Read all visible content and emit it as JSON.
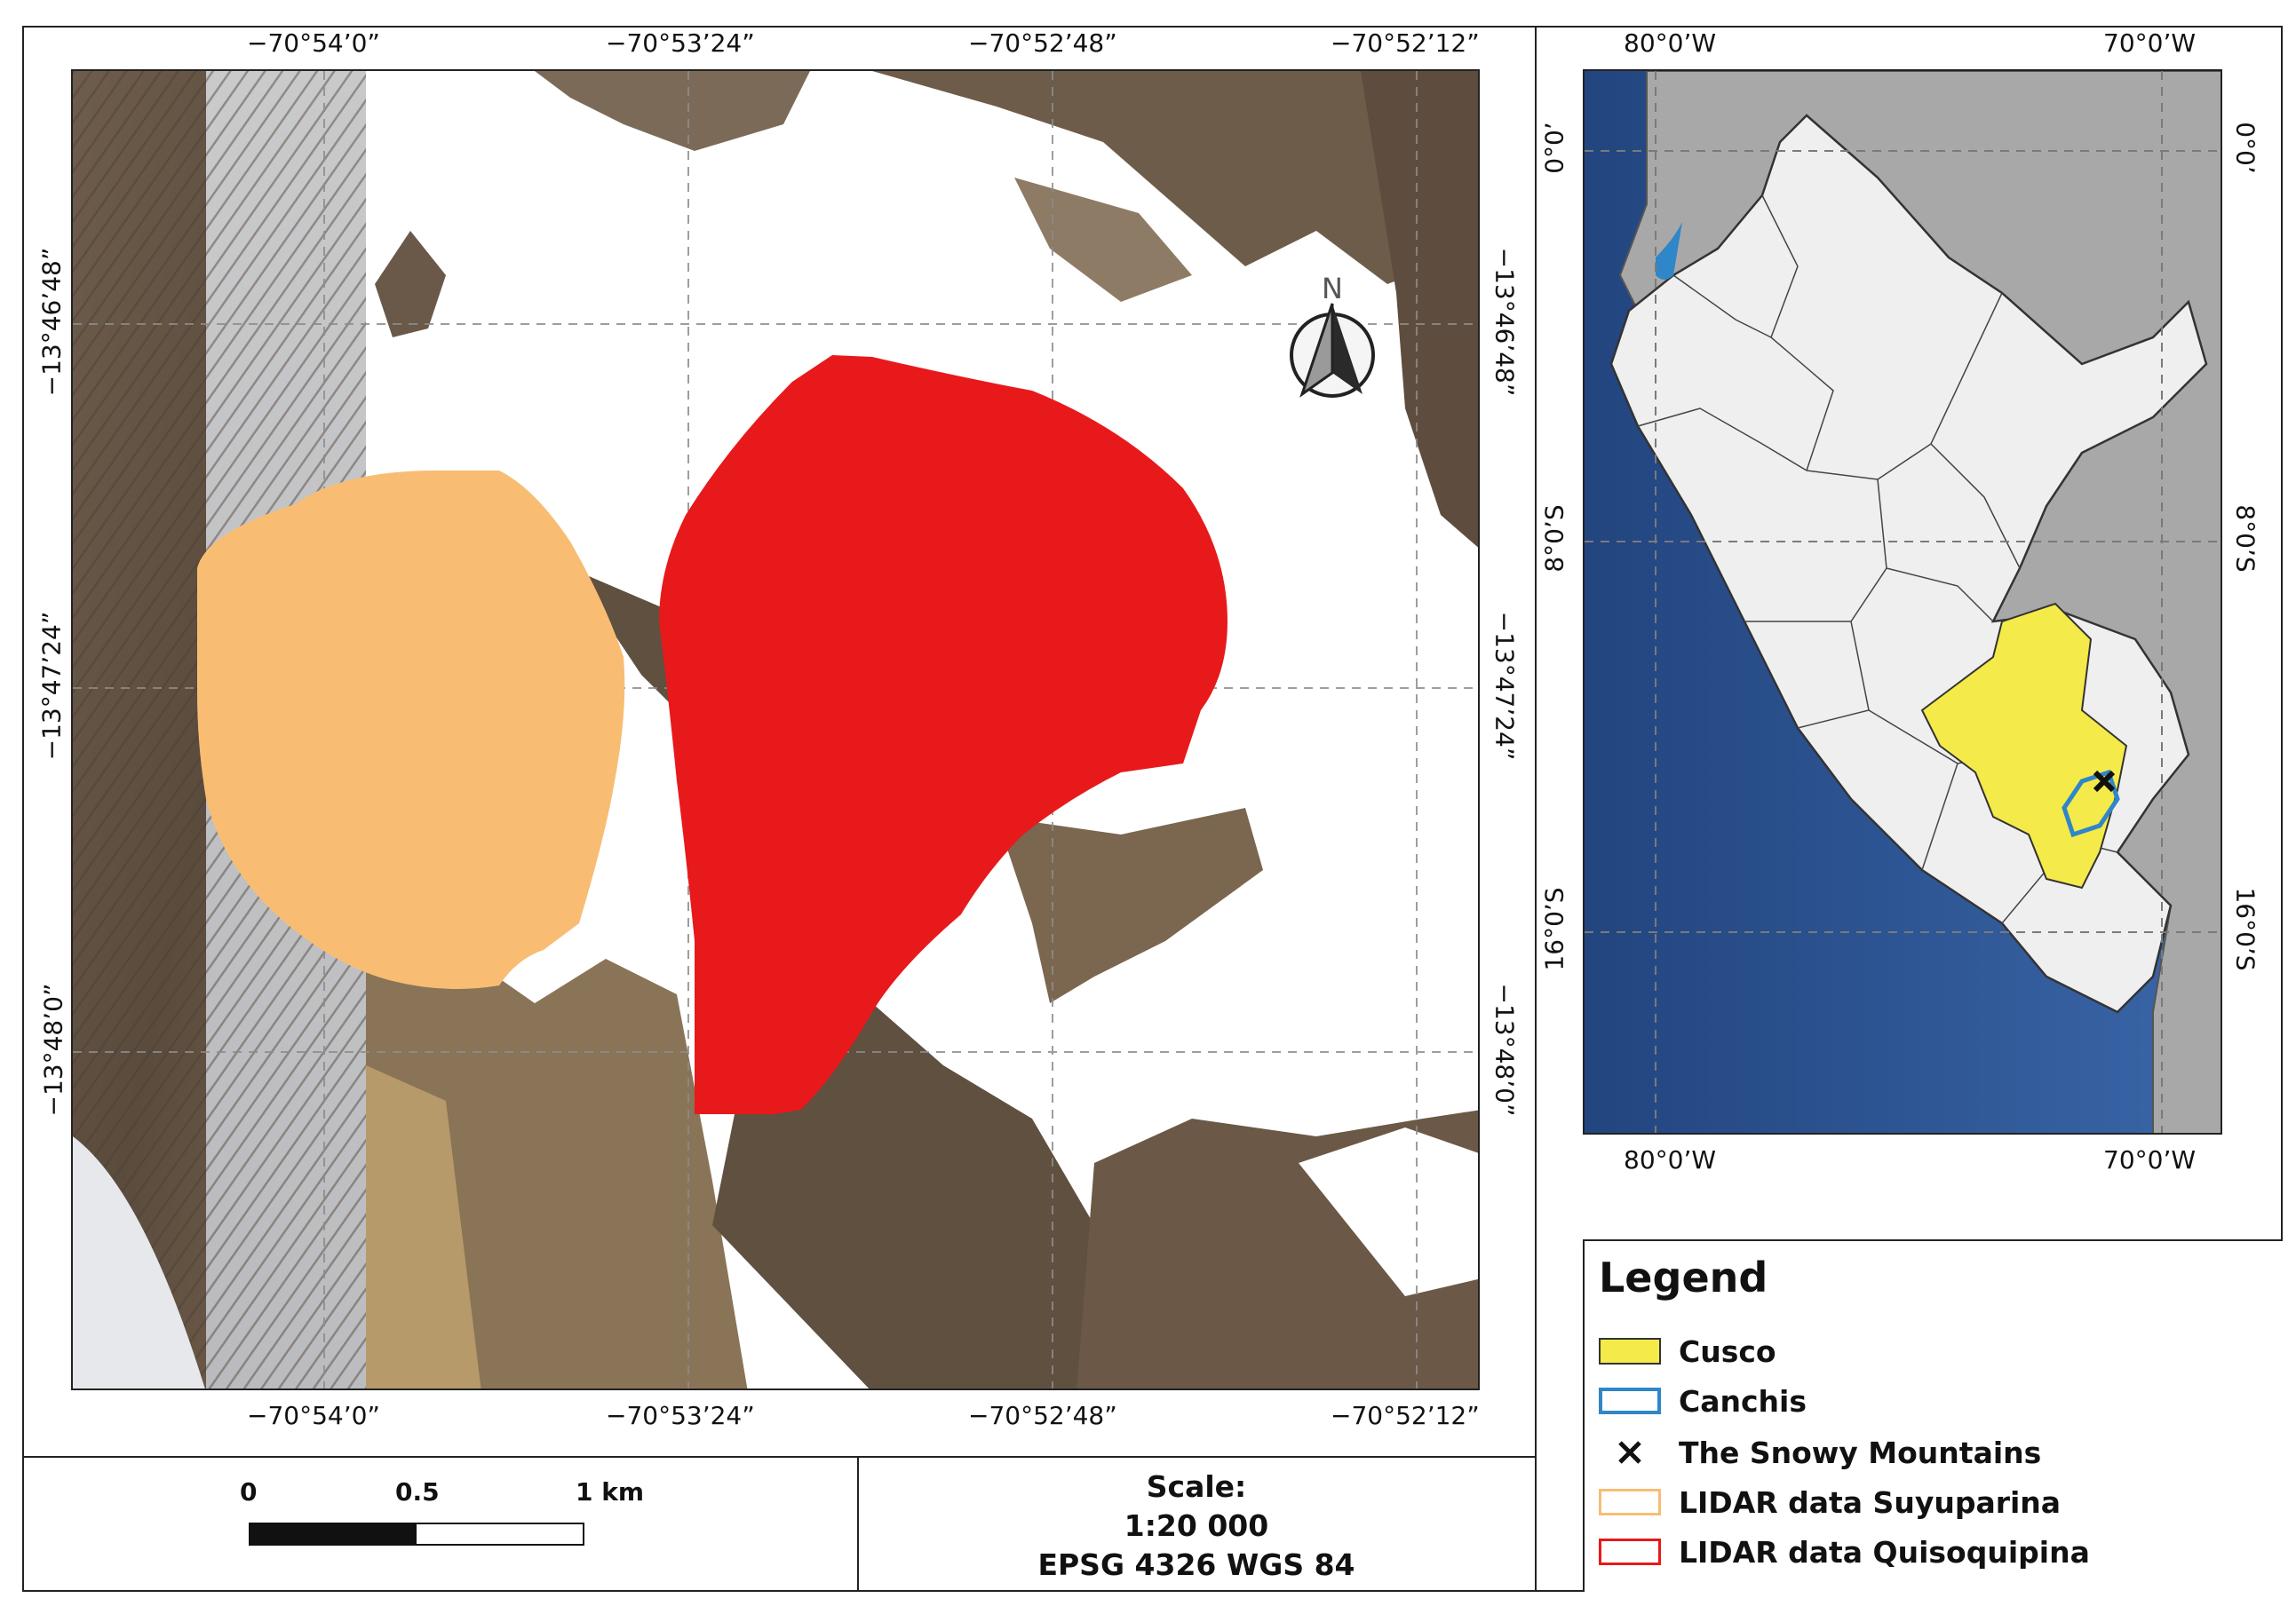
{
  "main_map": {
    "top_lon_labels": [
      "−70°54’0”",
      "−70°53’24”",
      "−70°52’48”",
      "−70°52’12”"
    ],
    "bottom_lon_labels": [
      "−70°54’0”",
      "−70°53’24”",
      "−70°52’48”",
      "−70°52’12”"
    ],
    "left_lat_labels": [
      "−13°46’48”",
      "−13°47’24”",
      "−13°48’0”"
    ],
    "right_lat_labels": [
      "−13°46’48”",
      "−13°47’24”",
      "−13°48’0”"
    ],
    "north_arrow_letter": "N",
    "colors": {
      "suyuparina": "#f8bd73",
      "quisoquipina": "#e8191b"
    }
  },
  "inset_map": {
    "top_lon_labels": [
      "80°0’W",
      "70°0’W"
    ],
    "bottom_lon_labels": [
      "80°0’W",
      "70°0’W"
    ],
    "left_lat_labels": [
      "0°0’",
      "8°0’S",
      "16°0’S"
    ],
    "right_lat_labels": [
      "0°0’",
      "8°0’S",
      "16°0’S"
    ],
    "colors": {
      "ocean": "#2a4f8f",
      "peru": "#efefef",
      "neighbors": "#a8a8a8",
      "cusco": "#f4ea4a",
      "canchis": "#2f86c8"
    }
  },
  "legend": {
    "title": "Legend",
    "items": [
      {
        "label": "Cusco",
        "icon": "yellow-fill-swatch",
        "color": "#f4ea4a"
      },
      {
        "label": "Canchis",
        "icon": "blue-outline-swatch",
        "color": "#2f86c8"
      },
      {
        "label": "The Snowy Mountains",
        "icon": "cross-marker-icon",
        "color": "#111111"
      },
      {
        "label": "LIDAR data Suyuparina",
        "icon": "orange-outline-swatch",
        "color": "#f8bd73"
      },
      {
        "label": "LIDAR data Quisoquipina",
        "icon": "red-outline-swatch",
        "color": "#e8191b"
      }
    ]
  },
  "scalebar": {
    "labels": [
      "0",
      "0.5",
      "1 km"
    ]
  },
  "scale_info": {
    "line1": "Scale:",
    "line2": "1:20 000",
    "line3": "EPSG 4326 WGS 84"
  }
}
